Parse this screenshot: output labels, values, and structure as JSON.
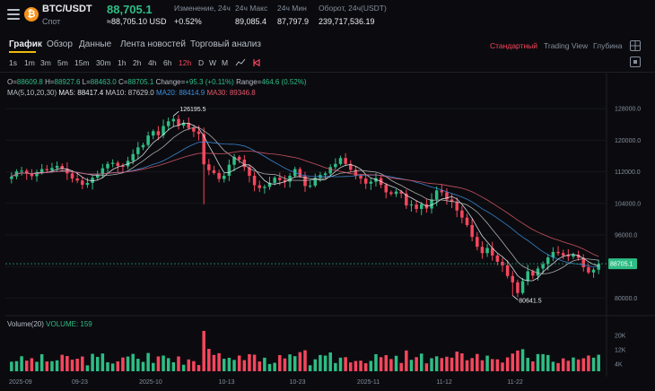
{
  "header": {
    "symbol": "BTC/USDT",
    "market": "Спот",
    "price": "88,705.1",
    "price_usd": "≈88,705.10 USD",
    "stats": [
      {
        "label": "Изменение, 24ч",
        "value": "+0.52%"
      },
      {
        "label": "24ч Макс",
        "value": "89,085.4"
      },
      {
        "label": "24ч Мин",
        "value": "87,797.9"
      },
      {
        "label": "Оборот, 24ч(USDT)",
        "value": "239,717,536.19"
      }
    ]
  },
  "tabs": [
    "График",
    "Обзор",
    "Данные",
    "Лента новостей",
    "Торговый анализ"
  ],
  "views": [
    "Стандартный",
    "Trading View",
    "Глубина"
  ],
  "timeframes": [
    "1s",
    "1m",
    "3m",
    "5m",
    "15m",
    "30m",
    "1h",
    "2h",
    "4h",
    "6h",
    "12h",
    "D",
    "W",
    "M"
  ],
  "ohlc": {
    "o_label": "O=",
    "o": "88609.8",
    "h_label": "H=",
    "h": "88927.6",
    "l_label": "L=",
    "l": "88463.0",
    "c_label": "C=",
    "c": "88705.1",
    "change_label": "Change=",
    "change": "+95.3 (+0.11%)",
    "range_label": "Range=",
    "range": "464.6 (0.52%)"
  },
  "ma": {
    "title": "MA(5,10,20,30)",
    "ma5_label": "MA5:",
    "ma5": "88417.4",
    "ma10_label": "MA10:",
    "ma10": "87629.0",
    "ma20_label": "MA20:",
    "ma20": "88414.9",
    "ma30_label": "MA30:",
    "ma30": "89346.8"
  },
  "volume": {
    "title": "Volume(20)",
    "label": "VOLUME:",
    "value": "159"
  },
  "colors": {
    "up": "#2ebd85",
    "down": "#f6465d",
    "ma20": "#3d8fe0",
    "ma30": "#e0586b"
  },
  "chart_data": {
    "type": "candlestick",
    "price_ticks": [
      "128000.0",
      "120000.0",
      "112000.0",
      "104000.0",
      "96000.0",
      "88000.0",
      "80000.0"
    ],
    "volume_ticks": [
      "20K",
      "12K",
      "4K"
    ],
    "date_ticks": [
      "2025-09",
      "09-23",
      "2025-10",
      "10-13",
      "10-23",
      "2025-11",
      "11-12",
      "11-22"
    ],
    "ylim": [
      76000,
      131000
    ],
    "high_marker": "126195.5",
    "low_marker": "80641.5",
    "last_price": "88705.1",
    "closes": [
      110800,
      112100,
      112300,
      111500,
      110900,
      111800,
      112700,
      112400,
      113000,
      113500,
      112800,
      111600,
      110300,
      109800,
      108700,
      109200,
      110500,
      111300,
      112900,
      114000,
      114300,
      113500,
      113400,
      114800,
      116500,
      118200,
      118800,
      121200,
      122300,
      121300,
      123600,
      124800,
      125400,
      123700,
      124400,
      123100,
      122200,
      121600,
      113900,
      112400,
      111700,
      110200,
      111000,
      113800,
      115800,
      115100,
      113200,
      111000,
      108600,
      107900,
      108200,
      109200,
      110500,
      109900,
      109500,
      111000,
      112700,
      110900,
      108400,
      108500,
      110500,
      111200,
      111600,
      113200,
      114000,
      115500,
      114000,
      112500,
      111000,
      110300,
      109000,
      109500,
      110400,
      108700,
      106800,
      106400,
      107000,
      106500,
      103500,
      103700,
      102600,
      103800,
      102700,
      105000,
      107300,
      106800,
      105000,
      104400,
      102200,
      100400,
      98500,
      95500,
      93000,
      91400,
      92700,
      90800,
      89200,
      88300,
      85600,
      84000,
      81300,
      84300,
      86800,
      85700,
      87500,
      88600,
      90300,
      91700,
      91400,
      90800,
      90500,
      91000,
      90200,
      87800,
      86500,
      87200,
      88700
    ]
  }
}
